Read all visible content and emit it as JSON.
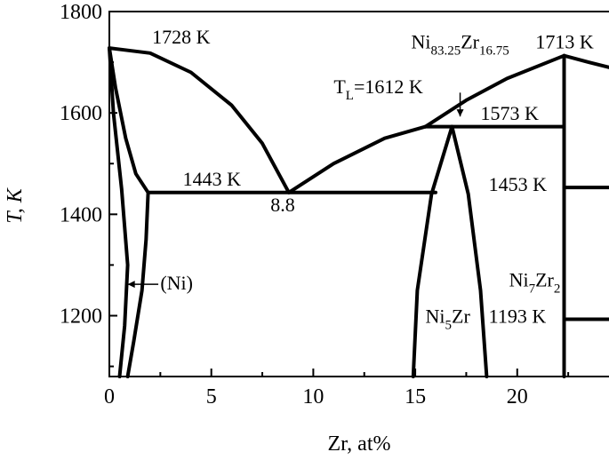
{
  "chart_data": {
    "type": "line",
    "chart_kind": "phase diagram",
    "xlabel": "Zr, at%",
    "ylabel": "T, K",
    "xlim": [
      0,
      24.5
    ],
    "ylim": [
      1080,
      1800
    ],
    "x_ticks": [
      0,
      5,
      10,
      15,
      20
    ],
    "y_ticks": [
      1200,
      1400,
      1600,
      1800
    ],
    "grid": false,
    "series": [
      {
        "id": "liquidus-ni-rich",
        "points": [
          [
            0,
            1728
          ],
          [
            2,
            1718
          ],
          [
            4,
            1680
          ],
          [
            6,
            1615
          ],
          [
            7.5,
            1540
          ],
          [
            8.8,
            1443
          ]
        ]
      },
      {
        "id": "liquidus-ni5zr",
        "points": [
          [
            8.8,
            1443
          ],
          [
            11,
            1500
          ],
          [
            13.5,
            1550
          ],
          [
            15.5,
            1573
          ]
        ]
      },
      {
        "id": "liquidus-ni7zr2",
        "points": [
          [
            15.5,
            1573
          ],
          [
            17.5,
            1625
          ],
          [
            19.5,
            1668
          ],
          [
            22.3,
            1713
          ]
        ]
      },
      {
        "id": "liquidus-right",
        "points": [
          [
            22.3,
            1713
          ],
          [
            23.5,
            1700
          ],
          [
            24.5,
            1690
          ]
        ]
      },
      {
        "id": "solidus-ni",
        "points": [
          [
            0,
            1728
          ],
          [
            0.3,
            1650
          ],
          [
            0.8,
            1550
          ],
          [
            1.3,
            1480
          ],
          [
            1.9,
            1443
          ]
        ]
      },
      {
        "id": "solvus-ni-upper",
        "points": [
          [
            0,
            1728
          ],
          [
            0.2,
            1600
          ],
          [
            0.6,
            1450
          ],
          [
            0.9,
            1300
          ],
          [
            0.75,
            1180
          ],
          [
            0.5,
            1080
          ]
        ]
      },
      {
        "id": "solvus-ni-lower",
        "points": [
          [
            1.9,
            1443
          ],
          [
            1.8,
            1350
          ],
          [
            1.6,
            1250
          ],
          [
            1.2,
            1150
          ],
          [
            0.9,
            1080
          ]
        ]
      },
      {
        "id": "eutectic-1443",
        "points": [
          [
            1.9,
            1443
          ],
          [
            16,
            1443
          ]
        ]
      },
      {
        "id": "eutectic-1573",
        "points": [
          [
            15.5,
            1573
          ],
          [
            22.3,
            1573
          ]
        ]
      },
      {
        "id": "ni5zr-left",
        "points": [
          [
            16.8,
            1573
          ],
          [
            15.8,
            1440
          ],
          [
            15.1,
            1250
          ],
          [
            14.9,
            1080
          ]
        ]
      },
      {
        "id": "ni5zr-right",
        "points": [
          [
            16.8,
            1573
          ],
          [
            17.6,
            1440
          ],
          [
            18.2,
            1250
          ],
          [
            18.5,
            1080
          ]
        ]
      },
      {
        "id": "ni7zr2-line",
        "points": [
          [
            22.3,
            1713
          ],
          [
            22.3,
            1080
          ]
        ]
      },
      {
        "id": "transition-1453",
        "points": [
          [
            22.3,
            1453
          ],
          [
            24.5,
            1453
          ]
        ]
      },
      {
        "id": "transition-1193",
        "points": [
          [
            22.3,
            1193
          ],
          [
            24.5,
            1193
          ]
        ]
      }
    ],
    "annotations": [
      {
        "id": "label-1728",
        "text": "1728 K",
        "x": 2.1,
        "y": 1737,
        "size": 22
      },
      {
        "id": "label-1443",
        "text": "1443 K",
        "x": 3.6,
        "y": 1457,
        "size": 22
      },
      {
        "id": "label-8-8",
        "text": "8.8",
        "x": 7.9,
        "y": 1406,
        "size": 22
      },
      {
        "id": "label-1573",
        "text": "1573 K",
        "x": 18.2,
        "y": 1586,
        "size": 22
      },
      {
        "id": "label-1713",
        "text": "1713 K",
        "x": 20.9,
        "y": 1727,
        "size": 22
      },
      {
        "id": "label-1453",
        "text": "1453 K",
        "x": 18.6,
        "y": 1446,
        "size": 22
      },
      {
        "id": "label-1193",
        "text": "1193 K",
        "x": 18.6,
        "y": 1186,
        "size": 22
      },
      {
        "id": "label-ni-phase",
        "text": "(Ni)",
        "x": 2.5,
        "y": 1252,
        "size": 22
      }
    ],
    "compound_labels": [
      {
        "id": "label-ni-83-zr-16",
        "parts": [
          "Ni",
          "83.25",
          "Zr",
          "16.75"
        ],
        "x": 14.8,
        "y": 1727
      },
      {
        "id": "label-tl",
        "parts": [
          "T",
          "L",
          "=1612 K"
        ],
        "x": 11.0,
        "y": 1639
      },
      {
        "id": "label-ni7zr2",
        "parts": [
          "Ni",
          "7",
          "Zr",
          "2"
        ],
        "x": 19.6,
        "y": 1258
      },
      {
        "id": "label-ni5zr",
        "parts": [
          "Ni",
          "5",
          "Zr"
        ],
        "x": 15.5,
        "y": 1186
      }
    ],
    "arrows": [
      {
        "id": "arrow-tl",
        "from": [
          17.2,
          1640
        ],
        "to": [
          17.2,
          1593
        ]
      },
      {
        "id": "arrow-ni",
        "from": [
          2.4,
          1262
        ],
        "to": [
          0.9,
          1262
        ]
      }
    ]
  }
}
